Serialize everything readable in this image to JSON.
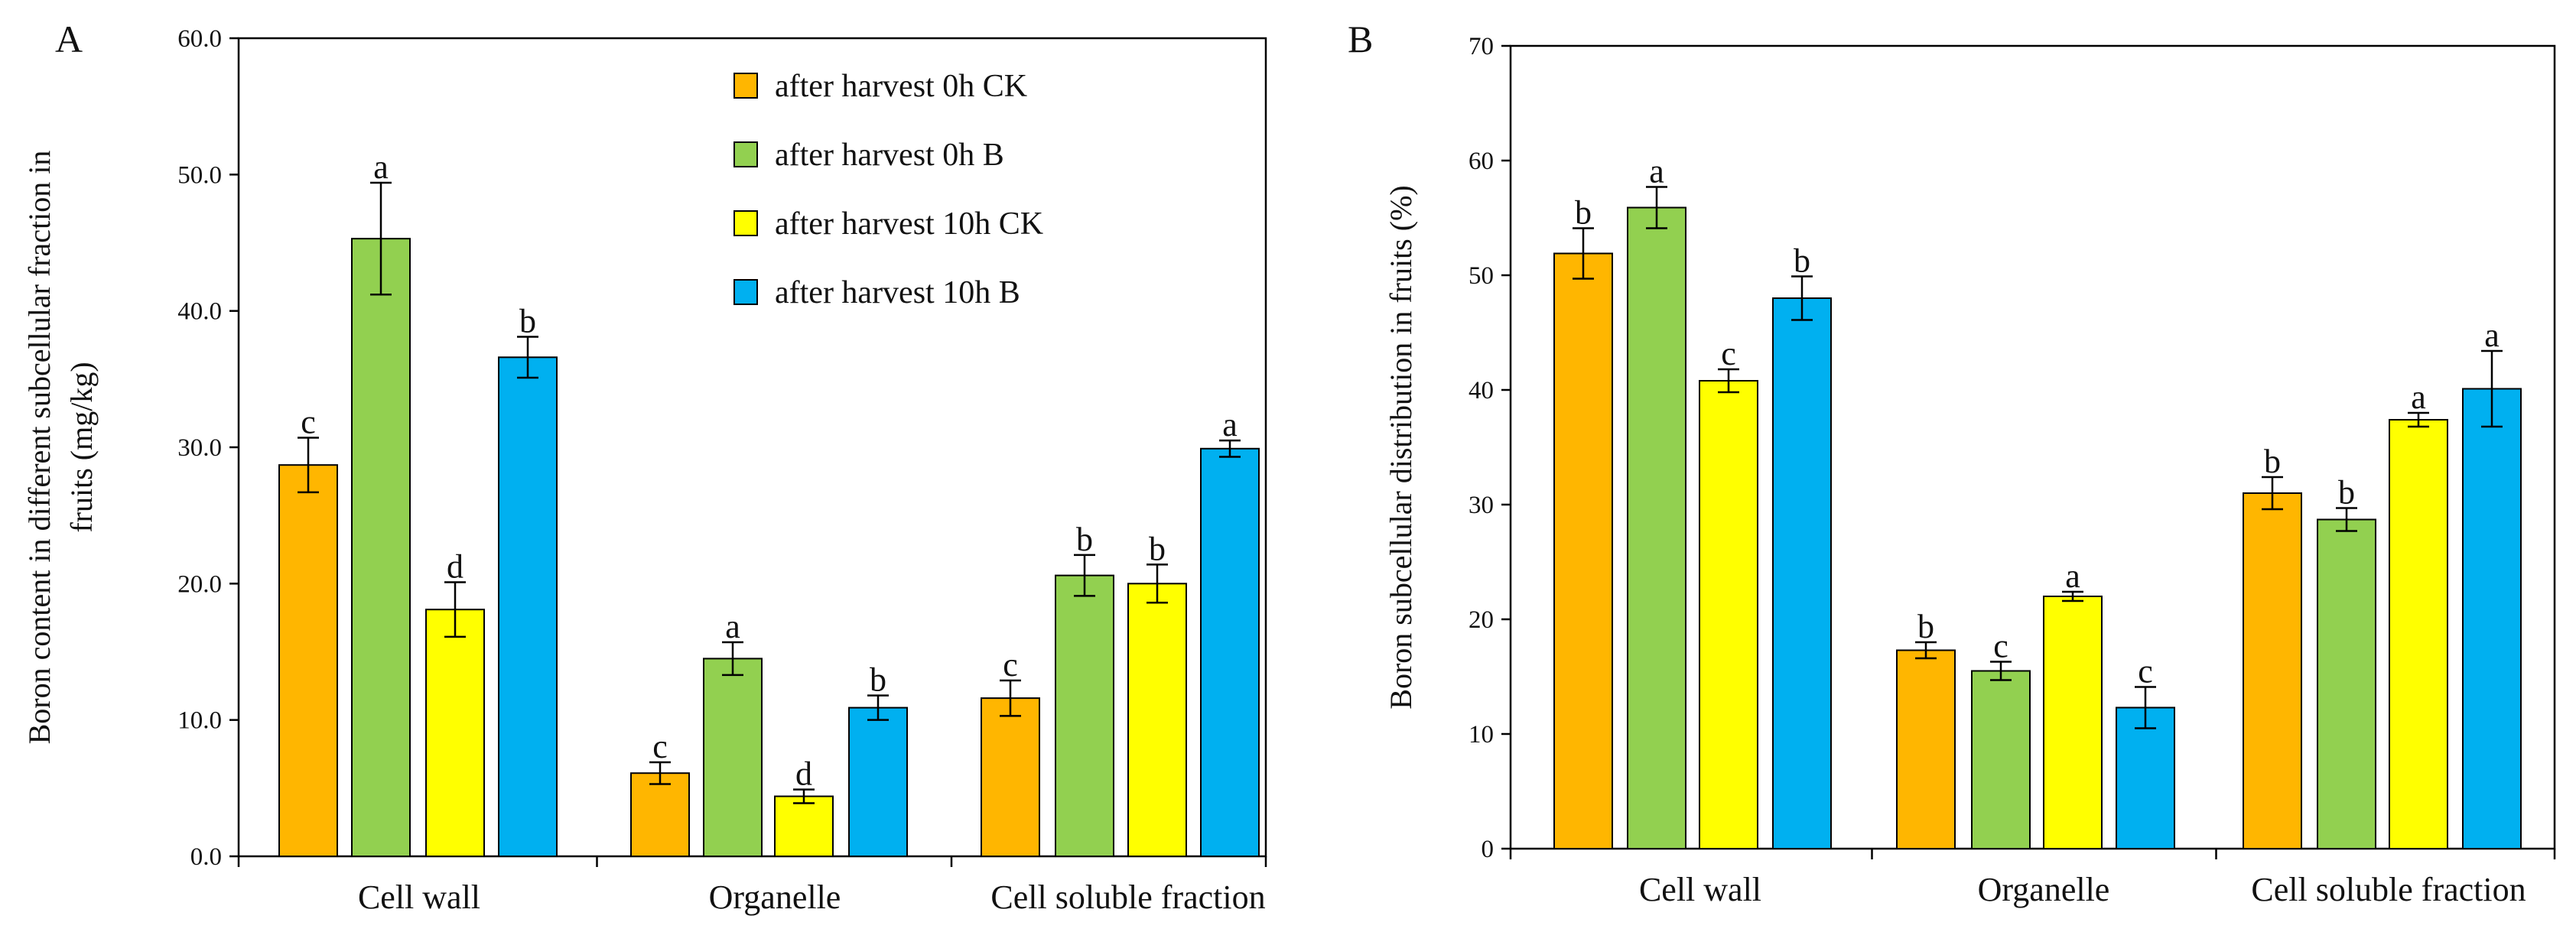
{
  "series_colors": [
    "#FFB600",
    "#92D050",
    "#FFFF00",
    "#00B0F0"
  ],
  "chart_data": [
    {
      "panel": "A",
      "type": "bar",
      "categories": [
        "Cell wall",
        "Organelle",
        "Cell soluble fraction"
      ],
      "ylabel_lines": [
        "Boron content in different subcellular  fraction in",
        "fruits (mg/kg)"
      ],
      "ylim": [
        0,
        60
      ],
      "yticks": [
        "0.0",
        "10.0",
        "20.0",
        "30.0",
        "40.0",
        "50.0",
        "60.0"
      ],
      "legend": [
        "after harvest 0h CK",
        "after harvest 0h B",
        "after harvest 10h CK",
        "after harvest 10h B"
      ],
      "series": [
        {
          "name": "after harvest 0h CK",
          "values": [
            28.7,
            6.1,
            11.6
          ],
          "errors": [
            2.0,
            0.8,
            1.3
          ],
          "letters": [
            "c",
            "c",
            "c"
          ]
        },
        {
          "name": "after harvest 0h B",
          "values": [
            45.3,
            14.5,
            20.6
          ],
          "errors": [
            4.1,
            1.2,
            1.5
          ],
          "letters": [
            "a",
            "a",
            "b"
          ]
        },
        {
          "name": "after harvest 10h CK",
          "values": [
            18.1,
            4.4,
            20.0
          ],
          "errors": [
            2.0,
            0.5,
            1.4
          ],
          "letters": [
            "d",
            "d",
            "b"
          ]
        },
        {
          "name": "after harvest 10h B",
          "values": [
            36.6,
            10.9,
            29.9
          ],
          "errors": [
            1.5,
            0.9,
            0.6
          ],
          "letters": [
            "b",
            "b",
            "a"
          ]
        }
      ]
    },
    {
      "panel": "B",
      "type": "bar",
      "categories": [
        "Cell wall",
        "Organelle",
        "Cell soluble fraction"
      ],
      "ylabel_lines": [
        "Boron subcellular   distribution  in  fruits (%)"
      ],
      "ylim": [
        0,
        70
      ],
      "yticks": [
        "0",
        "10",
        "20",
        "30",
        "40",
        "50",
        "60",
        "70"
      ],
      "series": [
        {
          "name": "after harvest 0h CK",
          "values": [
            51.9,
            17.3,
            31.0
          ],
          "errors": [
            2.2,
            0.7,
            1.4
          ],
          "letters": [
            "b",
            "b",
            "b"
          ]
        },
        {
          "name": "after harvest 0h B",
          "values": [
            55.9,
            15.5,
            28.7
          ],
          "errors": [
            1.8,
            0.8,
            1.0
          ],
          "letters": [
            "a",
            "c",
            "b"
          ]
        },
        {
          "name": "after harvest 10h CK",
          "values": [
            40.8,
            22.0,
            37.4
          ],
          "errors": [
            1.0,
            0.4,
            0.6
          ],
          "letters": [
            "c",
            "a",
            "a"
          ]
        },
        {
          "name": "after harvest 10h B",
          "values": [
            48.0,
            12.3,
            40.1
          ],
          "errors": [
            1.9,
            1.8,
            3.3
          ],
          "letters": [
            "b",
            "c",
            "a"
          ]
        }
      ]
    }
  ]
}
